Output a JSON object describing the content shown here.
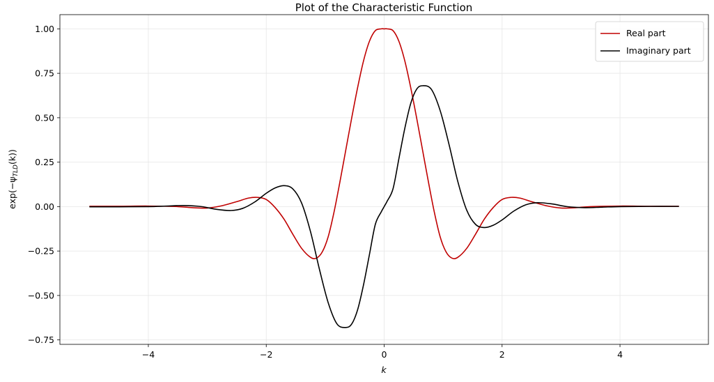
{
  "chart_data": {
    "type": "line",
    "title": "Plot of the Characteristic Function",
    "xlabel": "k",
    "ylabel": "exp(−ψ_TLD(k))",
    "ylabel_parts": {
      "pre": "exp(−ψ",
      "sub": "TLD",
      "post": "(k))"
    },
    "xlim": [
      -5.5,
      5.5
    ],
    "ylim": [
      -0.775,
      1.08
    ],
    "xticks": [
      -4,
      -2,
      0,
      2,
      4
    ],
    "xtick_labels": [
      "−4",
      "−2",
      "0",
      "2",
      "4"
    ],
    "yticks": [
      -0.75,
      -0.5,
      -0.25,
      0.0,
      0.25,
      0.5,
      0.75,
      1.0
    ],
    "ytick_labels": [
      "−0.75",
      "−0.50",
      "−0.25",
      "0.00",
      "0.25",
      "0.50",
      "0.75",
      "1.00"
    ],
    "grid": true,
    "legend_position": "top-right",
    "series": [
      {
        "name": "Real part",
        "color": "#c00000",
        "x": [
          -5,
          -4.5,
          -4,
          -3.5,
          -3.25,
          -3,
          -2.75,
          -2.5,
          -2.3,
          -2.15,
          -2,
          -1.85,
          -1.7,
          -1.55,
          -1.4,
          -1.25,
          -1.15,
          -1.05,
          -0.95,
          -0.85,
          -0.75,
          -0.65,
          -0.55,
          -0.45,
          -0.35,
          -0.25,
          -0.15,
          -0.05,
          0,
          0.05,
          0.15,
          0.25,
          0.35,
          0.45,
          0.55,
          0.65,
          0.75,
          0.85,
          0.95,
          1.05,
          1.15,
          1.25,
          1.4,
          1.55,
          1.7,
          1.85,
          2,
          2.15,
          2.3,
          2.5,
          2.75,
          3,
          3.25,
          3.5,
          4,
          4.5,
          5
        ],
        "y": [
          0.002,
          0.002,
          0.003,
          0.0,
          -0.006,
          -0.008,
          0.005,
          0.028,
          0.048,
          0.052,
          0.04,
          -0.005,
          -0.07,
          -0.155,
          -0.235,
          -0.285,
          -0.29,
          -0.255,
          -0.17,
          -0.03,
          0.14,
          0.32,
          0.5,
          0.67,
          0.82,
          0.93,
          0.99,
          1.0,
          1.0,
          1.0,
          0.99,
          0.93,
          0.82,
          0.67,
          0.5,
          0.32,
          0.14,
          -0.03,
          -0.17,
          -0.255,
          -0.29,
          -0.285,
          -0.235,
          -0.155,
          -0.07,
          -0.005,
          0.04,
          0.052,
          0.048,
          0.028,
          0.005,
          -0.008,
          -0.006,
          0.0,
          0.003,
          0.002,
          0.002
        ]
      },
      {
        "name": "Imaginary part",
        "color": "#000000",
        "x": [
          -5,
          -4.5,
          -4,
          -3.7,
          -3.4,
          -3.1,
          -2.85,
          -2.6,
          -2.4,
          -2.2,
          -2,
          -1.85,
          -1.7,
          -1.55,
          -1.4,
          -1.25,
          -1.1,
          -0.95,
          -0.8,
          -0.65,
          -0.55,
          -0.45,
          -0.35,
          -0.25,
          -0.15,
          -0.05,
          0,
          0.05,
          0.15,
          0.25,
          0.35,
          0.45,
          0.55,
          0.65,
          0.8,
          0.95,
          1.1,
          1.25,
          1.4,
          1.55,
          1.7,
          1.85,
          2,
          2.2,
          2.4,
          2.6,
          2.85,
          3.1,
          3.4,
          3.7,
          4,
          4.5,
          5
        ],
        "y": [
          -0.001,
          -0.001,
          0.0,
          0.003,
          0.006,
          0.0,
          -0.015,
          -0.022,
          -0.01,
          0.025,
          0.075,
          0.105,
          0.118,
          0.1,
          0.02,
          -0.14,
          -0.35,
          -0.54,
          -0.66,
          -0.68,
          -0.66,
          -0.58,
          -0.44,
          -0.27,
          -0.1,
          -0.03,
          0.0,
          0.03,
          0.1,
          0.27,
          0.44,
          0.58,
          0.66,
          0.68,
          0.66,
          0.54,
          0.35,
          0.14,
          -0.02,
          -0.1,
          -0.118,
          -0.105,
          -0.075,
          -0.025,
          0.01,
          0.022,
          0.015,
          0.0,
          -0.006,
          -0.003,
          0.0,
          0.001,
          0.001
        ]
      }
    ]
  }
}
